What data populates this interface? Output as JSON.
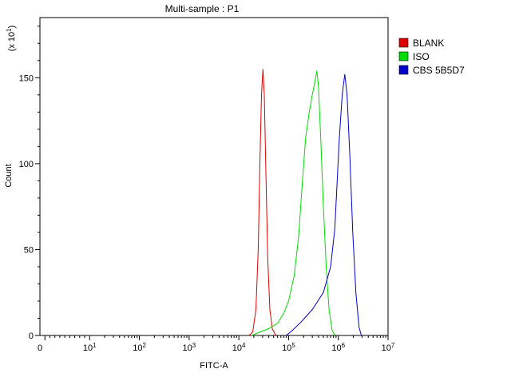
{
  "chart_data": {
    "type": "line",
    "title": "Multi-sample : P1",
    "xlabel": "FITC-A",
    "ylabel": "Count",
    "y_multiplier": "(x 10",
    "y_multiplier_exp": "1",
    "y_multiplier_close": ")",
    "xscale": "log",
    "xlim": [
      0,
      10000000
    ],
    "ylim": [
      0,
      185
    ],
    "x_ticks": [
      {
        "base": "0",
        "exp": ""
      },
      {
        "base": "10",
        "exp": "1"
      },
      {
        "base": "10",
        "exp": "2"
      },
      {
        "base": "10",
        "exp": "3"
      },
      {
        "base": "10",
        "exp": "4"
      },
      {
        "base": "10",
        "exp": "5"
      },
      {
        "base": "10",
        "exp": "6"
      },
      {
        "base": "10",
        "exp": "7"
      }
    ],
    "y_ticks": [
      "0",
      "50",
      "100",
      "150"
    ],
    "y_tick_values": [
      0,
      50,
      100,
      150
    ],
    "legend_position": "top-right",
    "series": [
      {
        "name": "BLANK",
        "color": "#e00000",
        "points": [
          [
            16000,
            0
          ],
          [
            19000,
            2
          ],
          [
            22000,
            15
          ],
          [
            24500,
            50
          ],
          [
            26500,
            100
          ],
          [
            28500,
            140
          ],
          [
            30500,
            155
          ],
          [
            32500,
            140
          ],
          [
            35000,
            95
          ],
          [
            38000,
            45
          ],
          [
            42000,
            15
          ],
          [
            47000,
            4
          ],
          [
            55000,
            0
          ]
        ]
      },
      {
        "name": "ISO",
        "color": "#00dd00",
        "points": [
          [
            18000,
            0
          ],
          [
            40000,
            4
          ],
          [
            60000,
            7
          ],
          [
            80000,
            13
          ],
          [
            100000,
            20
          ],
          [
            130000,
            35
          ],
          [
            160000,
            58
          ],
          [
            190000,
            90
          ],
          [
            220000,
            115
          ],
          [
            260000,
            130
          ],
          [
            300000,
            140
          ],
          [
            340000,
            148
          ],
          [
            370000,
            154
          ],
          [
            400000,
            145
          ],
          [
            450000,
            110
          ],
          [
            500000,
            75
          ],
          [
            570000,
            40
          ],
          [
            650000,
            15
          ],
          [
            750000,
            3
          ],
          [
            850000,
            0
          ]
        ]
      },
      {
        "name": "CBS 5B5D7",
        "color": "#0000cc",
        "points": [
          [
            90000,
            0
          ],
          [
            120000,
            3
          ],
          [
            180000,
            8
          ],
          [
            300000,
            15
          ],
          [
            500000,
            25
          ],
          [
            700000,
            40
          ],
          [
            850000,
            62
          ],
          [
            950000,
            90
          ],
          [
            1050000,
            115
          ],
          [
            1200000,
            140
          ],
          [
            1350000,
            152
          ],
          [
            1500000,
            140
          ],
          [
            1700000,
            105
          ],
          [
            1950000,
            60
          ],
          [
            2250000,
            25
          ],
          [
            2600000,
            5
          ],
          [
            2900000,
            0
          ]
        ]
      }
    ]
  }
}
